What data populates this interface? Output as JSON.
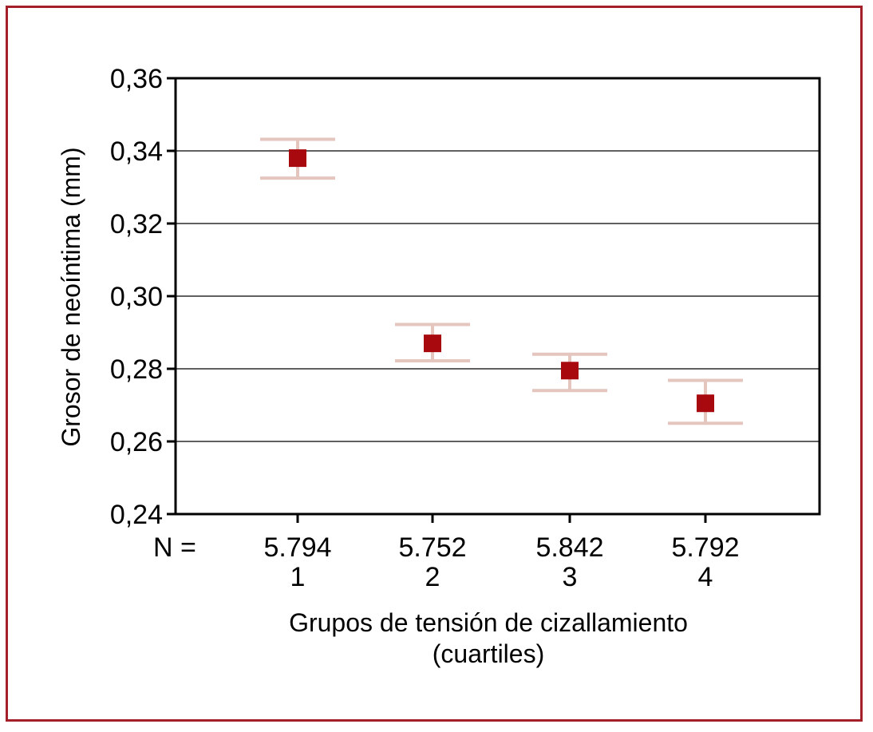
{
  "chart_data": {
    "type": "scatter",
    "ylabel": "Grosor de neoíntima (mm)",
    "xlabel_lines": [
      "Grupos de tensión de cizallamiento",
      "(cuartiles)"
    ],
    "n_prefix": "N =",
    "categories": [
      "1",
      "2",
      "3",
      "4"
    ],
    "n_values": [
      "5.794",
      "5.752",
      "5.842",
      "5.792"
    ],
    "y_ticks": [
      0.24,
      0.26,
      0.28,
      0.3,
      0.32,
      0.34,
      0.36
    ],
    "y_tick_labels": [
      "0,24",
      "0,26",
      "0,28",
      "0,30",
      "0,32",
      "0,34",
      "0,36"
    ],
    "ylim": [
      0.24,
      0.36
    ],
    "grid": true,
    "series": [
      {
        "values": [
          0.338,
          0.287,
          0.2795,
          0.2705
        ],
        "error_low": [
          0.3325,
          0.2822,
          0.274,
          0.265
        ],
        "error_high": [
          0.3432,
          0.2922,
          0.284,
          0.2768
        ]
      }
    ],
    "colors": {
      "marker": "#a8090f",
      "error_bar": "#e4c6bf",
      "frame": "#a3202a",
      "grid": "#000000"
    }
  }
}
